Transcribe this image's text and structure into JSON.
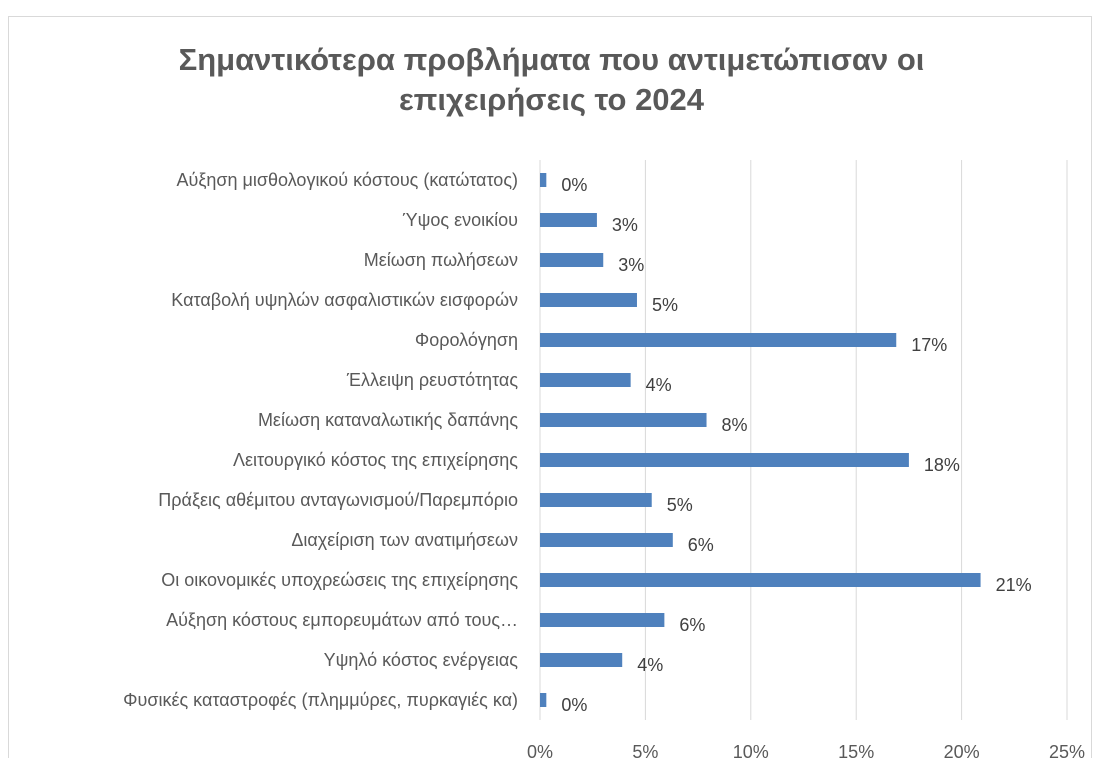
{
  "chart_data": {
    "type": "bar",
    "orientation": "horizontal",
    "title_lines": [
      "Σημαντικότερα προβλήματα που αντιμετώπισαν οι",
      "επιχειρήσεις το 2024"
    ],
    "categories": [
      "Αύξηση μισθολογικού κόστους (κατώτατος)",
      "Ύψος ενοικίου",
      "Μείωση πωλήσεων",
      "Καταβολή υψηλών ασφαλιστικών εισφορών",
      "Φορολόγηση",
      "Έλλειψη ρευστότητας",
      "Μείωση καταναλωτικής δαπάνης",
      "Λειτουργικό κόστος της επιχείρησης",
      "Πράξεις αθέμιτου ανταγωνισμού/Παρεμπόριο",
      "Διαχείριση των ανατιμήσεων",
      "Οι οικονομικές υποχρεώσεις της επιχείρησης",
      "Αύξηση κόστους εμπορευμάτων από τους…",
      "Υψηλό κόστος ενέργειας",
      "Φυσικές καταστροφές (πλημμύρες, πυρκαγιές κα)"
    ],
    "values": [
      0.3,
      2.7,
      3.0,
      4.6,
      16.9,
      4.3,
      7.9,
      17.5,
      5.3,
      6.3,
      20.9,
      5.9,
      3.9,
      0.3
    ],
    "data_labels": [
      "0%",
      "3%",
      "3%",
      "5%",
      "17%",
      "4%",
      "8%",
      "18%",
      "5%",
      "6%",
      "21%",
      "6%",
      "4%",
      "0%"
    ],
    "xlim": [
      0,
      25
    ],
    "x_ticks": [
      "0%",
      "5%",
      "10%",
      "15%",
      "20%",
      "25%"
    ],
    "grid": true,
    "bar_color": "#4f81bd",
    "grid_color": "#d9d9d9",
    "legend": "none"
  }
}
